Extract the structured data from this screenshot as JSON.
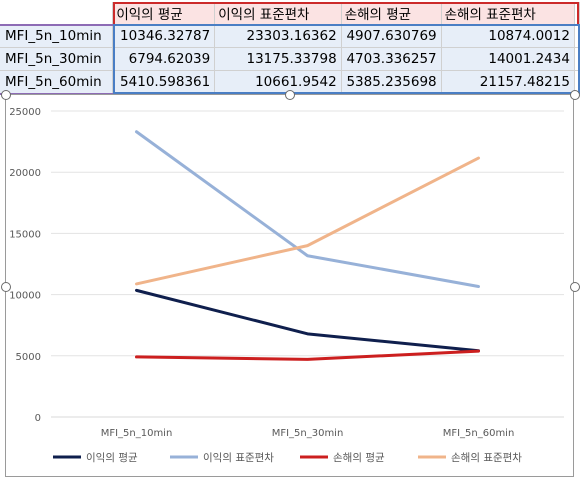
{
  "table": {
    "headers": [
      "이익의 평균",
      "이익의 표준편차",
      "손해의 평균",
      "손해의 표준편차"
    ],
    "rows": [
      {
        "label": "MFI_5n_10min",
        "values": [
          "10346.32787",
          "23303.16362",
          "4907.630769",
          "10874.0012"
        ]
      },
      {
        "label": "MFI_5n_30min",
        "values": [
          "6794.62039",
          "13175.33798",
          "4703.336257",
          "14001.2434"
        ]
      },
      {
        "label": "MFI_5n_60min",
        "values": [
          "5410.598361",
          "10661.9542",
          "5385.235698",
          "21157.48215"
        ]
      }
    ]
  },
  "chart_data": {
    "type": "line",
    "categories": [
      "MFI_5n_10min",
      "MFI_5n_30min",
      "MFI_5n_60min"
    ],
    "series": [
      {
        "name": "이익의 평균",
        "values": [
          10346.32787,
          6794.62039,
          5410.598361
        ],
        "color": "#0f1f4d"
      },
      {
        "name": "이익의 표준편차",
        "values": [
          23303.16362,
          13175.33798,
          10661.9542
        ],
        "color": "#97b1d8"
      },
      {
        "name": "손해의 평균",
        "values": [
          4907.630769,
          4703.336257,
          5385.235698
        ],
        "color": "#cc1f1f"
      },
      {
        "name": "손해의 표준편차",
        "values": [
          10874.0012,
          14001.2434,
          21157.48215
        ],
        "color": "#f0b48a"
      }
    ],
    "ylim": [
      0,
      25000
    ],
    "yticks": [
      "0",
      "5000",
      "10000",
      "15000",
      "20000",
      "25000"
    ],
    "grid": true,
    "legend": "bottom",
    "title": "",
    "xlabel": "",
    "ylabel": ""
  }
}
